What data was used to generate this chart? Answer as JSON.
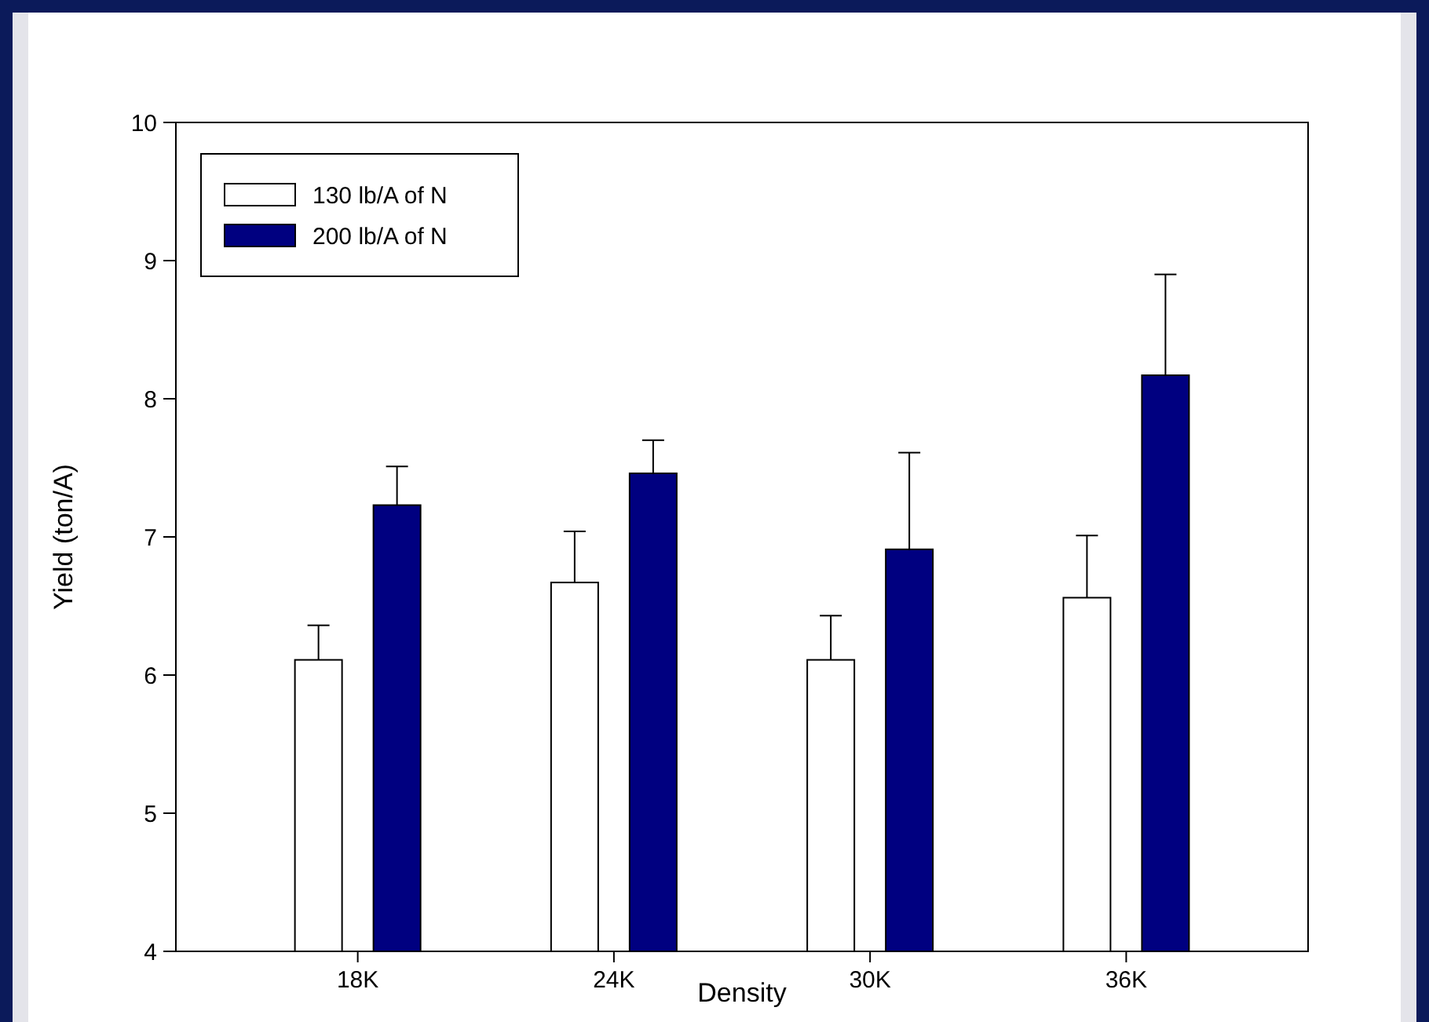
{
  "chart_data": {
    "type": "bar",
    "xlabel": "Density",
    "ylabel": "Yield (ton/A)",
    "categories": [
      "18K",
      "24K",
      "30K",
      "36K"
    ],
    "series": [
      {
        "name": "130 lb/A of N",
        "color": "#ffffff",
        "values": [
          6.11,
          6.67,
          6.11,
          6.56
        ],
        "errors": [
          [
            6.11,
            6.36
          ],
          [
            6.67,
            7.04
          ],
          [
            6.11,
            6.43
          ],
          [
            6.56,
            7.01
          ]
        ]
      },
      {
        "name": "200 lb/A of N",
        "color": "#000080",
        "values": [
          7.23,
          7.46,
          6.91,
          8.17
        ],
        "errors": [
          [
            7.23,
            7.51
          ],
          [
            7.46,
            7.7
          ],
          [
            6.91,
            7.61
          ],
          [
            8.17,
            8.9
          ]
        ]
      }
    ],
    "ylim": [
      4,
      10
    ],
    "yticks": [
      4,
      5,
      6,
      7,
      8,
      9,
      10
    ],
    "grid": false,
    "legend": "top left"
  }
}
